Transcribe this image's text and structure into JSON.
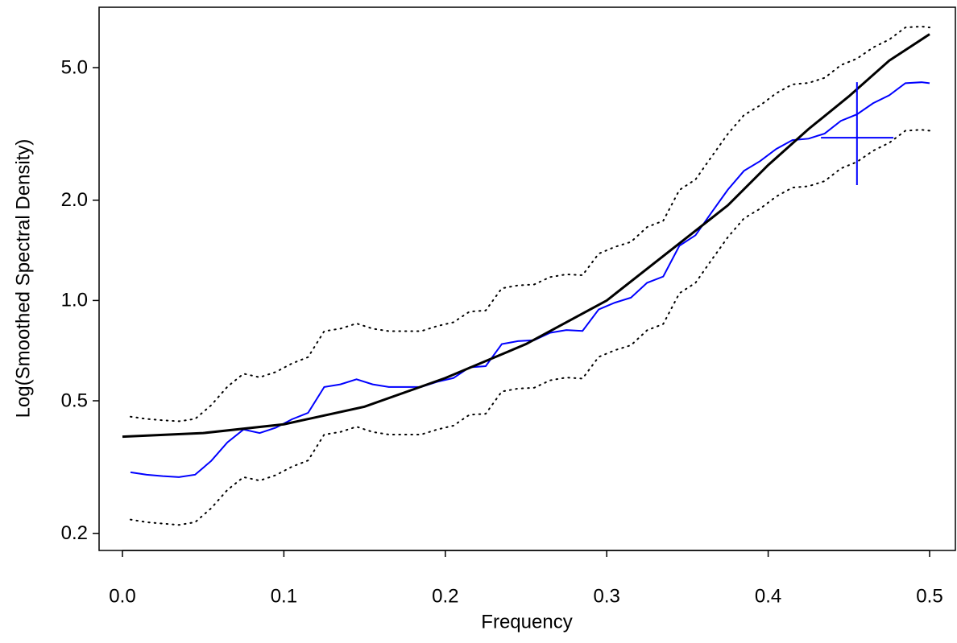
{
  "chart_data": {
    "type": "line",
    "x_label": "Frequency",
    "y_label": "Log(Smoothed Spectral Density)",
    "log_y": true,
    "xlim": [
      -0.01447,
      0.51597
    ],
    "ylim": [
      0.1777,
      7.59
    ],
    "xticks": [
      {
        "value": 0,
        "label": "0.0"
      },
      0.1,
      0.2,
      0.3,
      0.4,
      0.5
    ],
    "yticks": [
      0.2,
      0.5,
      {
        "value": 1,
        "label": "1.0"
      },
      {
        "value": 2,
        "label": "2.0"
      },
      {
        "value": 5,
        "label": "5.0"
      }
    ],
    "x": [
      0.005,
      0.015,
      0.025,
      0.035,
      0.045,
      0.055,
      0.065,
      0.075,
      0.085,
      0.095,
      0.105,
      0.115,
      0.125,
      0.135,
      0.145,
      0.155,
      0.165,
      0.175,
      0.185,
      0.195,
      0.205,
      0.215,
      0.225,
      0.235,
      0.245,
      0.255,
      0.265,
      0.275,
      0.285,
      0.295,
      0.305,
      0.315,
      0.325,
      0.335,
      0.345,
      0.355,
      0.365,
      0.375,
      0.385,
      0.395,
      0.405,
      0.415,
      0.425,
      0.435,
      0.445,
      0.455,
      0.465,
      0.475,
      0.485,
      0.495,
      0.5
    ],
    "series": [
      {
        "color": "#0000ff",
        "style": "solid",
        "width": 2,
        "values": [
          0.305,
          0.3,
          0.297,
          0.295,
          0.3,
          0.33,
          0.375,
          0.41,
          0.4,
          0.415,
          0.44,
          0.46,
          0.55,
          0.56,
          0.58,
          0.56,
          0.55,
          0.55,
          0.55,
          0.57,
          0.585,
          0.63,
          0.635,
          0.74,
          0.755,
          0.76,
          0.8,
          0.815,
          0.81,
          0.94,
          0.985,
          1.02,
          1.13,
          1.18,
          1.46,
          1.57,
          1.84,
          2.15,
          2.45,
          2.62,
          2.85,
          3.03,
          3.06,
          3.17,
          3.46,
          3.62,
          3.91,
          4.13,
          4.49,
          4.52,
          4.49
        ]
      },
      {
        "color": "#000000",
        "style": "dotted",
        "width": 2,
        "values": [
          0.448,
          0.441,
          0.437,
          0.434,
          0.441,
          0.485,
          0.551,
          0.603,
          0.588,
          0.61,
          0.647,
          0.676,
          0.809,
          0.823,
          0.853,
          0.823,
          0.809,
          0.809,
          0.809,
          0.838,
          0.86,
          0.926,
          0.933,
          1.088,
          1.11,
          1.117,
          1.176,
          1.198,
          1.191,
          1.382,
          1.448,
          1.499,
          1.661,
          1.735,
          2.146,
          2.308,
          2.705,
          3.161,
          3.602,
          3.851,
          4.19,
          4.454,
          4.498,
          4.66,
          5.086,
          5.321,
          5.748,
          6.071,
          6.6,
          6.644,
          6.6
        ]
      },
      {
        "color": "#000000",
        "style": "dotted",
        "width": 2,
        "values": [
          0.22,
          0.216,
          0.214,
          0.212,
          0.216,
          0.238,
          0.27,
          0.295,
          0.288,
          0.299,
          0.317,
          0.331,
          0.396,
          0.403,
          0.418,
          0.403,
          0.396,
          0.396,
          0.396,
          0.41,
          0.421,
          0.454,
          0.457,
          0.533,
          0.544,
          0.547,
          0.576,
          0.587,
          0.583,
          0.677,
          0.709,
          0.734,
          0.814,
          0.85,
          1.051,
          1.13,
          1.325,
          1.548,
          1.764,
          1.886,
          2.052,
          2.182,
          2.203,
          2.282,
          2.491,
          2.606,
          2.815,
          2.974,
          3.233,
          3.254,
          3.233
        ]
      },
      {
        "color": "#000000",
        "style": "solid",
        "width": 3,
        "x": [
          0,
          0.05,
          0.1,
          0.15,
          0.2,
          0.25,
          0.3,
          0.35,
          0.375,
          0.4,
          0.425,
          0.45,
          0.475,
          0.5
        ],
        "values": [
          0.39,
          0.4,
          0.425,
          0.48,
          0.585,
          0.74,
          1.0,
          1.55,
          1.93,
          2.55,
          3.27,
          4.1,
          5.25,
          6.3
        ]
      }
    ],
    "bandwidth_bar": {
      "color": "#0000ff",
      "center": [
        0.455,
        3.08
      ],
      "x_range": [
        0.4327,
        0.4776
      ],
      "y_range": [
        2.22,
        4.52
      ]
    }
  }
}
